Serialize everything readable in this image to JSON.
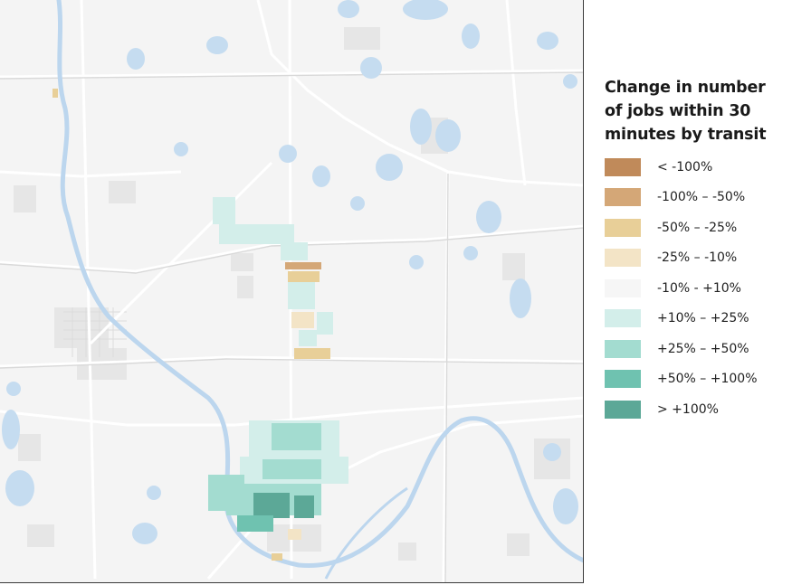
{
  "legend": {
    "title": "Change in number of jobs within 30 minutes by transit",
    "items": [
      {
        "label": "< -100%",
        "color": "#c08a5a"
      },
      {
        "label": "-100% – -50%",
        "color": "#d4a777"
      },
      {
        "label": "-50% – -25%",
        "color": "#e8cf98"
      },
      {
        "label": "-25% – -10%",
        "color": "#f3e4c6"
      },
      {
        "label": "-10% - +10%",
        "color": "#f6f6f6"
      },
      {
        "label": "+10% – +25%",
        "color": "#d3eeea"
      },
      {
        "label": "+25% – +50%",
        "color": "#a3dcd0"
      },
      {
        "label": "+50% – +100%",
        "color": "#6fc2b0"
      },
      {
        "label": "> +100%",
        "color": "#5ca897"
      }
    ]
  },
  "colors": {
    "map_background": "#f4f4f4",
    "water": "#c5dcf0",
    "roads": "#ffffff",
    "urban": "#e3e3e3"
  }
}
